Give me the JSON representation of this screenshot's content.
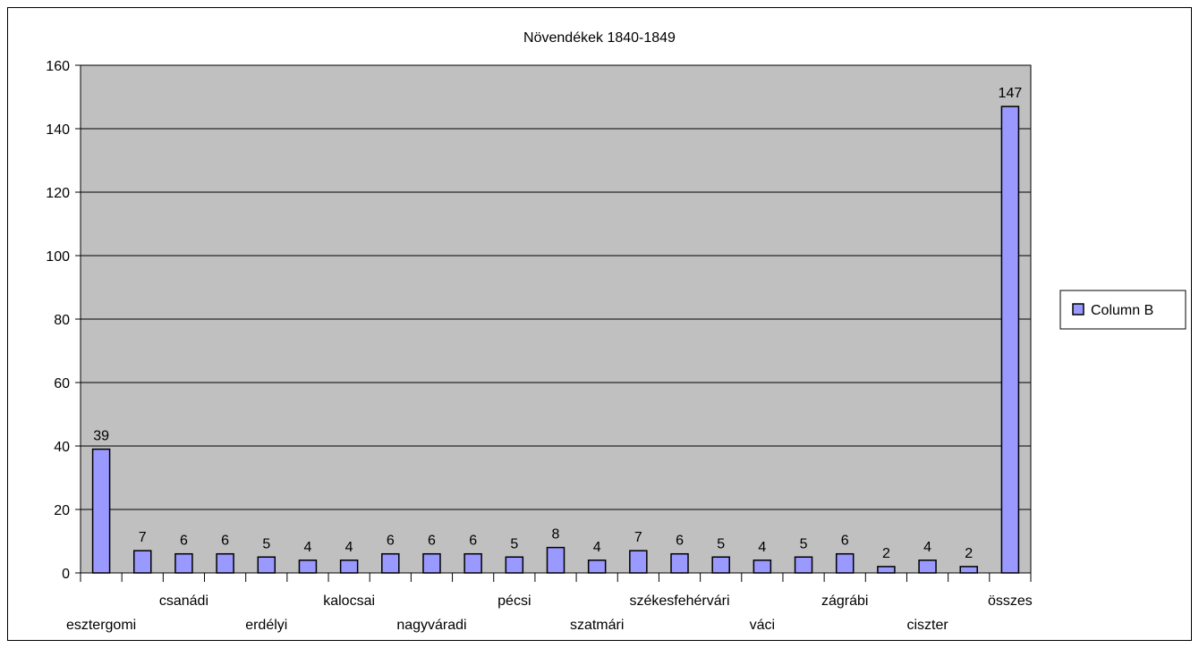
{
  "chart_data": {
    "type": "bar",
    "title": "Növendékek 1840-1849",
    "categories": [
      "esztergomi",
      null,
      "csanádi",
      null,
      "erdélyi",
      null,
      "kalocsai",
      null,
      "nagyváradi",
      null,
      "pécsi",
      null,
      "szatmári",
      null,
      "székesfehérvári",
      null,
      "váci",
      null,
      "zágrábi",
      null,
      "ciszter",
      null,
      "összes"
    ],
    "series": [
      {
        "name": "Column B",
        "color": "#9999ff",
        "values": [
          39,
          7,
          6,
          6,
          5,
          4,
          4,
          6,
          6,
          6,
          5,
          8,
          4,
          7,
          6,
          5,
          4,
          5,
          6,
          2,
          4,
          2,
          147
        ]
      }
    ],
    "ylim": [
      0,
      160
    ],
    "yticks": [
      0,
      20,
      40,
      60,
      80,
      100,
      120,
      140,
      160
    ],
    "grid": true,
    "legend": "right",
    "plot_background": "#c0c0c0"
  }
}
